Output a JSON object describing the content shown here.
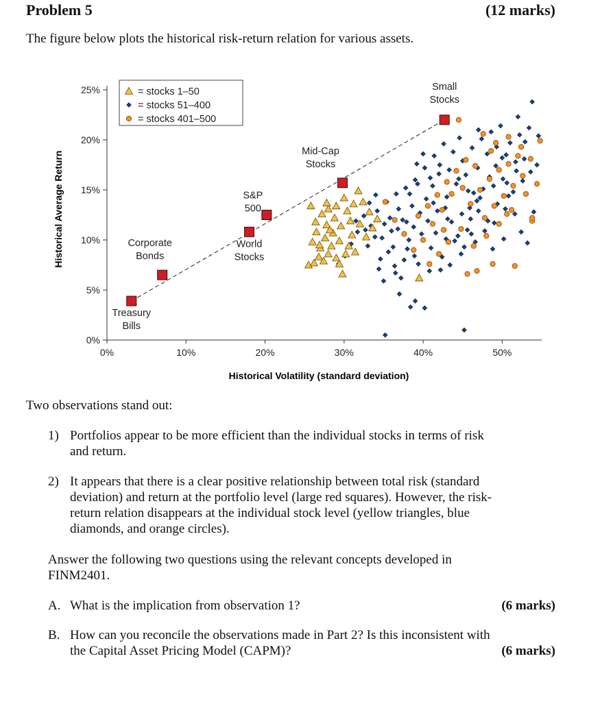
{
  "header": {
    "title": "Problem 5",
    "marks": "(12 marks)"
  },
  "intro": "The figure below plots the historical risk-return relation for various assets.",
  "chart_data": {
    "type": "scatter",
    "xlabel": "Historical Volatility (standard deviation)",
    "ylabel": "Historical Average Return",
    "xlim": [
      0,
      55
    ],
    "ylim": [
      0,
      25
    ],
    "x_ticks": [
      "0%",
      "10%",
      "20%",
      "30%",
      "40%",
      "50%"
    ],
    "y_ticks": [
      "0%",
      "5%",
      "10%",
      "15%",
      "20%",
      "25%"
    ],
    "legend": {
      "placement": "top-left",
      "entries": [
        "= stocks 1–50",
        "= stocks 51–400",
        "= stocks 401–500"
      ]
    },
    "colors": {
      "triangle": "#f2c14e",
      "diamond": "#1c3f6e",
      "circle": "#f0922b",
      "square": "#cc1f25"
    },
    "portfolios": [
      {
        "label": "Treasury Bills",
        "x": 3.1,
        "y": 3.9
      },
      {
        "label": "Corporate Bonds",
        "x": 7.0,
        "y": 6.5
      },
      {
        "label": "World Stocks",
        "x": 18.0,
        "y": 10.8
      },
      {
        "label": "S&P 500",
        "x": 20.2,
        "y": 12.5
      },
      {
        "label": "Mid-Cap Stocks",
        "x": 29.8,
        "y": 15.7
      },
      {
        "label": "Small Stocks",
        "x": 42.7,
        "y": 22.0
      }
    ],
    "series": [
      {
        "name": "stocks 1–50",
        "marker": "triangle",
        "points": [
          [
            25.5,
            7.5
          ],
          [
            26.2,
            7.7
          ],
          [
            26.8,
            8.3
          ],
          [
            27.4,
            7.9
          ],
          [
            28.0,
            8.6
          ],
          [
            27.0,
            9.2
          ],
          [
            26.0,
            9.8
          ],
          [
            27.6,
            10.2
          ],
          [
            28.4,
            9.4
          ],
          [
            29.0,
            8.2
          ],
          [
            26.5,
            10.8
          ],
          [
            27.8,
            11.5
          ],
          [
            28.6,
            10.7
          ],
          [
            29.4,
            9.9
          ],
          [
            30.2,
            8.6
          ],
          [
            26.4,
            11.8
          ],
          [
            27.2,
            12.6
          ],
          [
            28.0,
            13.1
          ],
          [
            28.8,
            12.2
          ],
          [
            29.6,
            11.4
          ],
          [
            30.4,
            12.9
          ],
          [
            31.2,
            13.6
          ],
          [
            30.0,
            14.2
          ],
          [
            31.8,
            14.9
          ],
          [
            32.4,
            13.8
          ],
          [
            33.2,
            12.8
          ],
          [
            32.0,
            11.6
          ],
          [
            31.0,
            10.5
          ],
          [
            33.6,
            11.2
          ],
          [
            27.8,
            13.7
          ],
          [
            29.0,
            13.4
          ],
          [
            30.6,
            9.4
          ],
          [
            31.4,
            8.8
          ],
          [
            29.8,
            6.6
          ],
          [
            39.5,
            6.2
          ],
          [
            28.2,
            11.0
          ],
          [
            26.9,
            9.5
          ],
          [
            30.8,
            11.9
          ],
          [
            32.8,
            10.3
          ],
          [
            25.8,
            13.4
          ],
          [
            34.2,
            12.1
          ],
          [
            29.4,
            7.6
          ]
        ]
      },
      {
        "name": "stocks 51–400",
        "marker": "diamond",
        "points": [
          [
            29.3,
            7.6
          ],
          [
            30.1,
            8.4
          ],
          [
            30.9,
            9.6
          ],
          [
            31.7,
            10.8
          ],
          [
            32.5,
            12.4
          ],
          [
            33.2,
            13.7
          ],
          [
            34.0,
            14.5
          ],
          [
            34.8,
            10.2
          ],
          [
            35.6,
            8.8
          ],
          [
            36.4,
            7.4
          ],
          [
            37.2,
            6.2
          ],
          [
            38.0,
            9.1
          ],
          [
            38.8,
            11.3
          ],
          [
            39.6,
            12.7
          ],
          [
            40.4,
            14.1
          ],
          [
            41.2,
            15.4
          ],
          [
            42.0,
            16.6
          ],
          [
            42.8,
            13.2
          ],
          [
            43.6,
            11.8
          ],
          [
            44.4,
            10.4
          ],
          [
            45.2,
            9.3
          ],
          [
            46.0,
            12.1
          ],
          [
            46.8,
            13.9
          ],
          [
            47.6,
            15.1
          ],
          [
            48.4,
            16.3
          ],
          [
            49.2,
            17.4
          ],
          [
            50.0,
            18.2
          ],
          [
            50.8,
            14.4
          ],
          [
            51.6,
            12.6
          ],
          [
            52.4,
            10.8
          ],
          [
            53.2,
            9.7
          ],
          [
            54.0,
            12.8
          ],
          [
            34.2,
            12.9
          ],
          [
            35.4,
            13.8
          ],
          [
            36.6,
            14.6
          ],
          [
            37.8,
            15.2
          ],
          [
            39.0,
            16.0
          ],
          [
            40.2,
            17.2
          ],
          [
            41.4,
            18.4
          ],
          [
            42.6,
            19.6
          ],
          [
            43.8,
            18.8
          ],
          [
            45.0,
            17.9
          ],
          [
            46.2,
            19.2
          ],
          [
            47.4,
            20.1
          ],
          [
            48.6,
            20.8
          ],
          [
            49.8,
            21.4
          ],
          [
            51.0,
            19.7
          ],
          [
            52.2,
            20.5
          ],
          [
            53.4,
            21.2
          ],
          [
            54.6,
            20.4
          ],
          [
            33.0,
            9.4
          ],
          [
            34.6,
            8.1
          ],
          [
            36.0,
            10.9
          ],
          [
            37.4,
            12.0
          ],
          [
            38.6,
            13.4
          ],
          [
            39.8,
            10.6
          ],
          [
            41.0,
            9.2
          ],
          [
            42.4,
            8.3
          ],
          [
            43.4,
            7.5
          ],
          [
            44.8,
            8.6
          ],
          [
            46.6,
            9.8
          ],
          [
            47.8,
            10.9
          ],
          [
            49.0,
            11.7
          ],
          [
            50.4,
            13.1
          ],
          [
            51.4,
            14.8
          ],
          [
            52.6,
            15.9
          ],
          [
            53.6,
            16.8
          ],
          [
            54.4,
            17.5
          ],
          [
            35.0,
            5.9
          ],
          [
            37.0,
            4.6
          ],
          [
            39.0,
            3.9
          ],
          [
            40.2,
            3.2
          ],
          [
            38.4,
            3.3
          ],
          [
            35.2,
            0.5
          ],
          [
            45.2,
            1.0
          ],
          [
            33.4,
            11.4
          ],
          [
            35.8,
            12.2
          ],
          [
            36.8,
            11.1
          ],
          [
            38.2,
            10.0
          ],
          [
            40.6,
            11.9
          ],
          [
            41.8,
            12.9
          ],
          [
            43.0,
            14.3
          ],
          [
            44.2,
            15.6
          ],
          [
            45.4,
            16.5
          ],
          [
            46.4,
            14.7
          ],
          [
            47.0,
            12.9
          ],
          [
            48.2,
            11.9
          ],
          [
            49.4,
            13.6
          ],
          [
            50.6,
            15.7
          ],
          [
            51.8,
            16.9
          ],
          [
            52.8,
            18.1
          ],
          [
            36.2,
            9.3
          ],
          [
            37.6,
            8.0
          ],
          [
            39.4,
            7.6
          ],
          [
            40.8,
            6.9
          ],
          [
            42.2,
            7.0
          ],
          [
            44.0,
            9.9
          ],
          [
            45.6,
            11.0
          ],
          [
            48.8,
            9.1
          ],
          [
            50.2,
            10.1
          ],
          [
            31.5,
            11.9
          ],
          [
            32.7,
            11.0
          ],
          [
            33.9,
            10.3
          ],
          [
            35.1,
            11.6
          ],
          [
            36.9,
            13.1
          ],
          [
            38.3,
            14.6
          ],
          [
            39.3,
            15.6
          ],
          [
            40.9,
            16.2
          ],
          [
            42.1,
            17.5
          ],
          [
            43.3,
            17.0
          ],
          [
            44.5,
            16.1
          ],
          [
            45.7,
            14.9
          ],
          [
            46.9,
            17.2
          ],
          [
            48.1,
            18.6
          ],
          [
            49.3,
            19.3
          ],
          [
            50.5,
            18.5
          ],
          [
            51.7,
            17.8
          ],
          [
            52.9,
            19.8
          ],
          [
            34.4,
            7.1
          ],
          [
            36.5,
            6.7
          ],
          [
            38.9,
            8.4
          ],
          [
            41.6,
            10.7
          ],
          [
            43.1,
            12.1
          ],
          [
            45.9,
            13.2
          ],
          [
            47.2,
            14.2
          ],
          [
            48.9,
            15.4
          ],
          [
            50.1,
            16.1
          ],
          [
            39.2,
            17.6
          ],
          [
            40.0,
            18.6
          ],
          [
            44.6,
            20.2
          ],
          [
            47.0,
            21.0
          ],
          [
            52.0,
            22.3
          ],
          [
            53.8,
            23.8
          ],
          [
            37.9,
            11.8
          ],
          [
            41.3,
            13.7
          ],
          [
            42.9,
            10.1
          ],
          [
            44.9,
            12.6
          ],
          [
            46.1,
            10.6
          ]
        ]
      },
      {
        "name": "stocks 401–500",
        "marker": "circle",
        "points": [
          [
            44.5,
            22.0
          ],
          [
            47.6,
            20.6
          ],
          [
            49.2,
            19.7
          ],
          [
            50.8,
            20.3
          ],
          [
            52.4,
            19.3
          ],
          [
            53.6,
            18.1
          ],
          [
            54.8,
            19.9
          ],
          [
            54.4,
            15.6
          ],
          [
            53.0,
            14.6
          ],
          [
            51.2,
            13.0
          ],
          [
            49.6,
            11.6
          ],
          [
            48.0,
            10.4
          ],
          [
            46.4,
            9.4
          ],
          [
            45.6,
            6.6
          ],
          [
            46.8,
            6.9
          ],
          [
            48.8,
            7.6
          ],
          [
            51.6,
            7.4
          ],
          [
            43.6,
            14.6
          ],
          [
            42.4,
            13.0
          ],
          [
            41.2,
            11.6
          ],
          [
            40.0,
            10.0
          ],
          [
            38.8,
            9.0
          ],
          [
            37.6,
            10.6
          ],
          [
            36.4,
            12.0
          ],
          [
            35.2,
            13.8
          ],
          [
            46.0,
            13.6
          ],
          [
            47.2,
            15.0
          ],
          [
            48.4,
            16.1
          ],
          [
            49.6,
            17.0
          ],
          [
            50.8,
            17.6
          ],
          [
            52.0,
            18.4
          ],
          [
            45.4,
            18.0
          ],
          [
            44.2,
            16.9
          ],
          [
            43.0,
            15.8
          ],
          [
            41.8,
            14.5
          ],
          [
            40.6,
            13.4
          ],
          [
            39.4,
            12.4
          ],
          [
            47.8,
            12.2
          ],
          [
            49.0,
            13.4
          ],
          [
            50.2,
            14.4
          ],
          [
            51.4,
            15.4
          ],
          [
            52.6,
            16.4
          ],
          [
            44.8,
            11.1
          ],
          [
            43.2,
            9.8
          ],
          [
            42.0,
            8.6
          ],
          [
            40.8,
            7.6
          ],
          [
            53.8,
            11.9
          ],
          [
            48.6,
            18.9
          ],
          [
            46.6,
            17.4
          ],
          [
            45.0,
            15.2
          ],
          [
            50.6,
            12.6
          ],
          [
            42.6,
            11.0
          ],
          [
            53.8,
            12.2
          ]
        ]
      }
    ]
  },
  "observations": {
    "lead": "Two observations stand out:",
    "items": [
      {
        "num": "1)",
        "lines": [
          "Portfolios appear to be more efficient than the individual stocks in terms of risk",
          "and return."
        ]
      },
      {
        "num": "2)",
        "lines": [
          "It appears that there is a clear positive relationship between total risk (standard",
          "deviation) and return at the portfolio level (large red squares). However, the risk-",
          "return relation disappears at the individual stock level (yellow triangles, blue",
          "diamonds, and orange circles)."
        ]
      }
    ]
  },
  "instruction": {
    "lines": [
      "Answer the following two questions using the relevant concepts developed in",
      "FINM2401."
    ]
  },
  "questions": [
    {
      "label": "A.",
      "lines": [
        "What is the implication from observation 1?"
      ],
      "marks": "(6 marks)"
    },
    {
      "label": "B.",
      "lines": [
        "How can you reconcile the observations made in Part 2? Is this inconsistent with",
        "the Capital Asset Pricing Model (CAPM)?"
      ],
      "marks": "(6 marks)"
    }
  ]
}
